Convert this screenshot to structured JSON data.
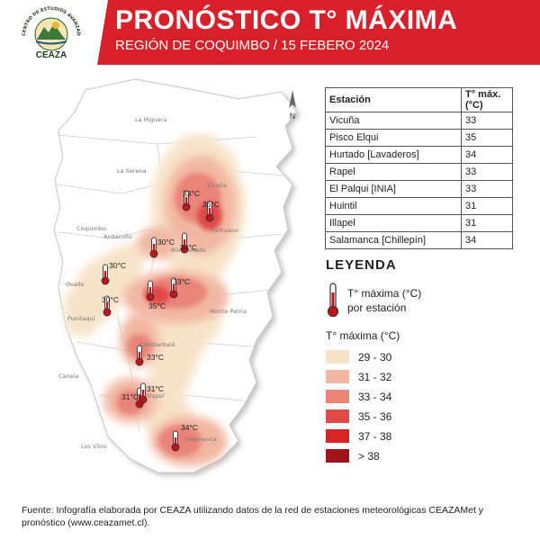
{
  "header": {
    "title": "PRONÓSTICO T° MÁXIMA",
    "subtitle": "REGIÓN DE COQUIMBO / 15 FEBERO 2024",
    "logo_text": "CEAZA",
    "logo_ring_text": "CENTRO DE ESTUDIOS AVANZADOS EN ZONAS ÁRIDAS"
  },
  "colors": {
    "banner": "#d8202a",
    "range_29_30": "#f7e3c8",
    "range_31_32": "#f2b7a2",
    "range_33_34": "#ea8479",
    "range_35_36": "#e04a47",
    "range_37_38": "#d82424",
    "range_38_plus": "#a0141c"
  },
  "map": {
    "north_label": "N",
    "place_labels": [
      {
        "name": "La Higuera"
      },
      {
        "name": "La Serena"
      },
      {
        "name": "Vicuña"
      },
      {
        "name": "Coquimbo"
      },
      {
        "name": "Andacollo"
      },
      {
        "name": "Paihuano"
      },
      {
        "name": "Ovalle"
      },
      {
        "name": "Río Hurtado"
      },
      {
        "name": "Punitaqui"
      },
      {
        "name": "Monte Patria"
      },
      {
        "name": "Combarbalá"
      },
      {
        "name": "Canela"
      },
      {
        "name": "Illapel"
      },
      {
        "name": "Salamanca"
      },
      {
        "name": "Los Vilos"
      }
    ],
    "stations": [
      {
        "label": "33°C"
      },
      {
        "label": "35°C"
      },
      {
        "label": "30°C"
      },
      {
        "label": "34°C"
      },
      {
        "label": "30°C"
      },
      {
        "label": "33°C"
      },
      {
        "label": "35°C"
      },
      {
        "label": "30°C"
      },
      {
        "label": "33°C"
      },
      {
        "label": "31°C"
      },
      {
        "label": "31°C"
      },
      {
        "label": "34°C"
      }
    ]
  },
  "table": {
    "headers": [
      "Estación",
      "T° máx. (°C)"
    ],
    "rows": [
      {
        "station": "Vicuña",
        "value": "33"
      },
      {
        "station": "Pisco Elqui",
        "value": "35"
      },
      {
        "station": "Hurtado [Lavaderos]",
        "value": "34"
      },
      {
        "station": "Rapel",
        "value": "33"
      },
      {
        "station": "El Palqui [INIA]",
        "value": "33"
      },
      {
        "station": "Huintil",
        "value": "31"
      },
      {
        "station": "Illapel",
        "value": "31"
      },
      {
        "station": "Salamanca [Chillepín]",
        "value": "34"
      }
    ]
  },
  "legend": {
    "title": "LEYENDA",
    "station_label_1": "T° máxima (°C)",
    "station_label_2": "por estación",
    "range_title": "T° máxima (°C)",
    "ranges": [
      "29 - 30",
      "31 - 32",
      "33 - 34",
      "35 - 36",
      "37 - 38",
      "> 38"
    ]
  },
  "footer": {
    "text": "Fuente: Infografía elaborada por CEAZA utilizando datos de la red de estaciones meteorológicas CEAZAMet y pronóstico (www.ceazamet.cl)."
  }
}
